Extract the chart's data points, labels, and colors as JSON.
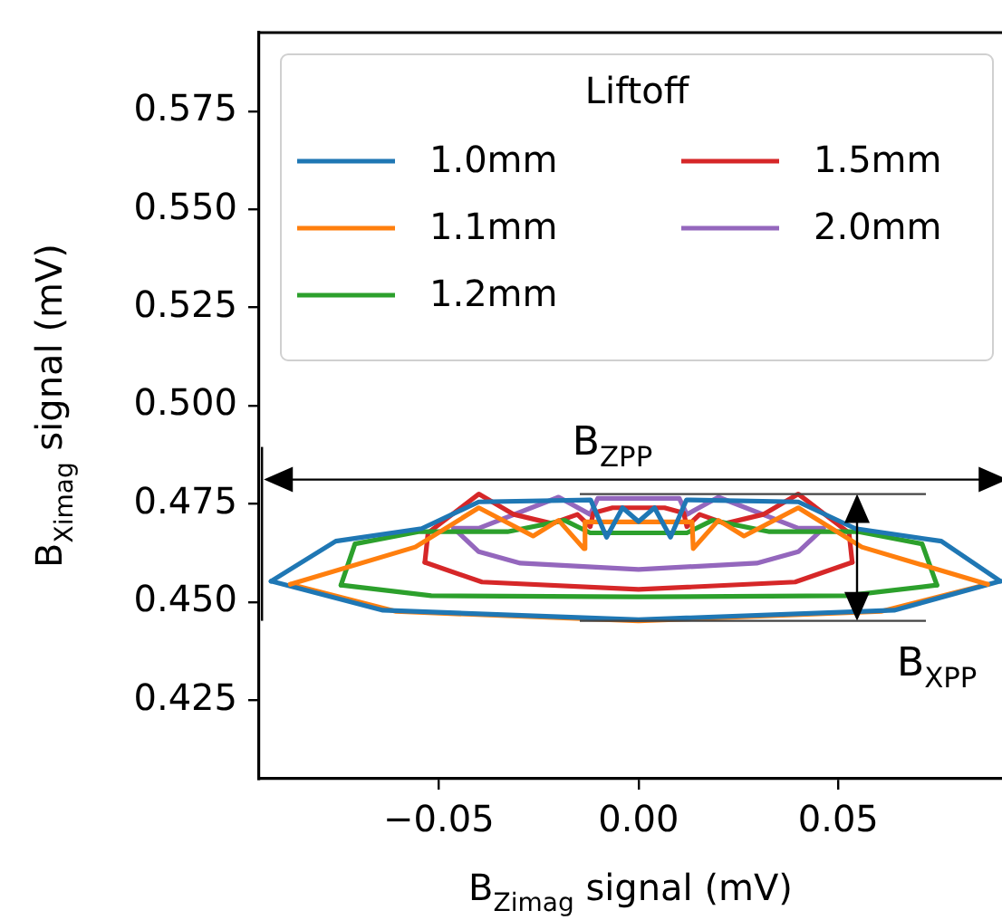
{
  "chart_data": {
    "type": "line",
    "xlabel": "B$_{Zimag}$ signal (mV)",
    "ylabel": "B$_{Ximag}$ signal (mV)",
    "legend_title": "Liftoff",
    "legend": "top right",
    "grid": false,
    "marker": "none",
    "line_style": "solid",
    "xlim": [
      -0.095,
      0.091
    ],
    "ylim": [
      0.405,
      0.595
    ],
    "xticks": [
      {
        "value": -0.05,
        "label": "−0.05"
      },
      {
        "value": 0,
        "label": "0.00"
      },
      {
        "value": 0.05,
        "label": "0.05"
      }
    ],
    "yticks": [
      {
        "value": 0.425,
        "label": "0.425"
      },
      {
        "value": 0.45,
        "label": "0.450"
      },
      {
        "value": 0.475,
        "label": "0.475"
      },
      {
        "value": 0.5,
        "label": "0.500"
      },
      {
        "value": 0.525,
        "label": "0.525"
      },
      {
        "value": 0.55,
        "label": "0.550"
      },
      {
        "value": 0.575,
        "label": "0.575"
      }
    ],
    "annotations": [
      "B$_{ZPP}$",
      "B$_{XPP}$"
    ],
    "series": [
      {
        "name": "1.0mm",
        "color": "#1f77b4",
        "x": [
          -0.092,
          -0.0758,
          -0.0543,
          -0.04,
          -0.012,
          -0.008,
          -0.004,
          0,
          0.004,
          0.008,
          0.012,
          0.04,
          0.0543,
          0.0758,
          0.0906
        ],
        "values": [
          0.4553,
          0.4655,
          0.4687,
          0.4755,
          0.476,
          0.4665,
          0.474,
          0.4705,
          0.474,
          0.4665,
          0.476,
          0.4755,
          0.4687,
          0.4655,
          0.4553
        ]
      },
      {
        "name": "1.1mm",
        "color": "#ff7f0e",
        "x": [
          -0.0872,
          -0.0559,
          -0.04,
          -0.0264,
          -0.02,
          -0.0137,
          -0.0134,
          0.0134,
          0.0137,
          0.02,
          0.0264,
          0.04,
          0.0559,
          0.0874
        ],
        "values": [
          0.4545,
          0.464,
          0.474,
          0.4668,
          0.4708,
          0.4636,
          0.4704,
          0.4704,
          0.4636,
          0.4708,
          0.4668,
          0.474,
          0.464,
          0.4545
        ]
      },
      {
        "name": "1.2mm",
        "color": "#2ca02c",
        "x": [
          -0.0745,
          -0.071,
          -0.0551,
          -0.0328,
          -0.0185,
          -0.0121,
          0.0121,
          0.0185,
          0.0328,
          0.0551,
          0.071,
          0.0747
        ],
        "values": [
          0.4543,
          0.4648,
          0.4679,
          0.4679,
          0.4708,
          0.4676,
          0.4676,
          0.4708,
          0.4679,
          0.4679,
          0.4648,
          0.4543
        ]
      },
      {
        "name": "1.5mm",
        "color": "#d62728",
        "x": [
          -0.0535,
          -0.0527,
          -0.04,
          -0.0312,
          -0.0217,
          -0.0153,
          -0.0121,
          -0.0113,
          -0.0065,
          0.0065,
          0.0113,
          0.0121,
          0.0153,
          0.0217,
          0.0312,
          0.04,
          0.0527,
          0.0535
        ],
        "values": [
          0.4601,
          0.4676,
          0.4775,
          0.4723,
          0.47,
          0.4723,
          0.4692,
          0.4727,
          0.474,
          0.474,
          0.4727,
          0.4692,
          0.4723,
          0.47,
          0.4723,
          0.4775,
          0.4676,
          0.4601
        ]
      },
      {
        "name": "2.0mm",
        "color": "#9467bd",
        "x": [
          -0.0463,
          -0.04,
          -0.02,
          -0.0121,
          -0.0102,
          0.0102,
          0.0121,
          0.02,
          0.04,
          0.0463
        ],
        "values": [
          0.4688,
          0.4688,
          0.4767,
          0.4723,
          0.4764,
          0.4764,
          0.4723,
          0.4767,
          0.4688,
          0.4688
        ]
      },
      {
        "color": "#1f77b4",
        "x": [
          -0.092,
          -0.064,
          0,
          0.064,
          0.0906
        ],
        "values": [
          0.4553,
          0.4479,
          0.4455,
          0.4479,
          0.4553
        ]
      },
      {
        "color": "#ff7f0e",
        "x": [
          -0.0872,
          -0.0607,
          0,
          0.0607,
          0.0874
        ],
        "values": [
          0.4545,
          0.4476,
          0.4452,
          0.4476,
          0.4545
        ]
      },
      {
        "color": "#2ca02c",
        "x": [
          -0.0745,
          -0.0519,
          0,
          0.0519,
          0.0747
        ],
        "values": [
          0.4543,
          0.4516,
          0.4513,
          0.4516,
          0.4543
        ]
      },
      {
        "color": "#d62728",
        "x": [
          -0.0535,
          -0.0392,
          0,
          0.0392,
          0.0535
        ],
        "values": [
          0.4601,
          0.4551,
          0.4532,
          0.4551,
          0.4601
        ]
      },
      {
        "color": "#9467bd",
        "x": [
          -0.0463,
          -0.04,
          -0.0296,
          0,
          0.0296,
          0.04,
          0.0463
        ],
        "values": [
          0.4688,
          0.4628,
          0.4599,
          0.4583,
          0.4599,
          0.4628,
          0.4688
        ]
      }
    ]
  }
}
